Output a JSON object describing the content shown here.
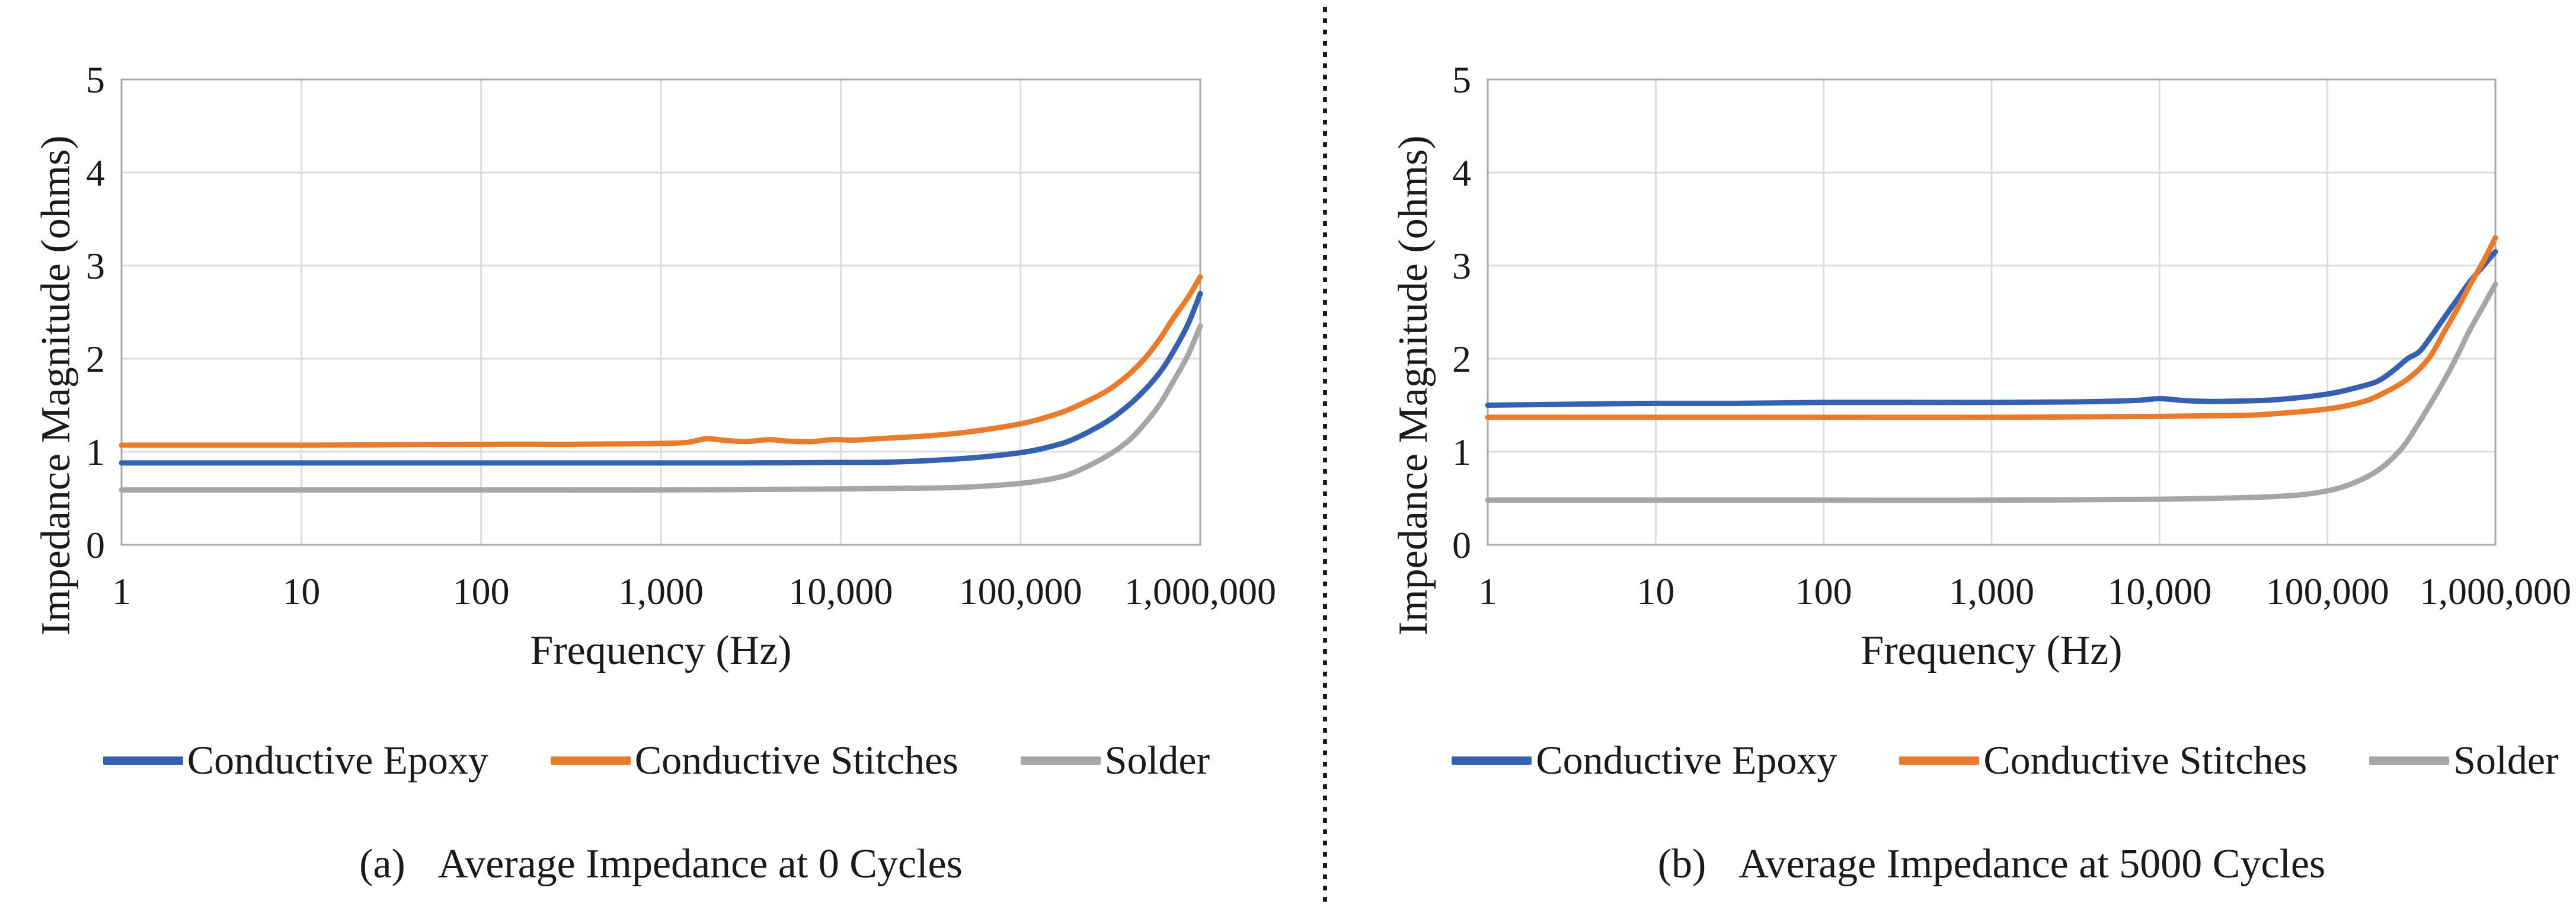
{
  "style_colors": {
    "grid": "#DCDCDC",
    "axis": "#A9A9A9",
    "text": "#1A1A1A",
    "divider": "#1A1A1A"
  },
  "panels": [
    {
      "caption_label": "(a)",
      "caption_text": "Average Impedance at 0 Cycles"
    },
    {
      "caption_label": "(b)",
      "caption_text": "Average Impedance at 5000 Cycles"
    }
  ],
  "chart_data": [
    {
      "type": "line",
      "title": "(a) Average Impedance at 0 Cycles",
      "xlabel": "Frequency (Hz)",
      "ylabel": "Impedance Magnitude (ohms)",
      "x_scale": "log",
      "xlim": [
        1,
        1000000
      ],
      "ylim": [
        0,
        5
      ],
      "grid": true,
      "legend_position": "below",
      "x_ticks": {
        "values": [
          1,
          10,
          100,
          1000,
          10000,
          100000,
          1000000
        ],
        "labels": [
          "1",
          "10",
          "100",
          "1,000",
          "10,000",
          "100,000",
          "1,000,000"
        ]
      },
      "y_ticks": [
        0,
        1,
        2,
        3,
        4,
        5
      ],
      "series": [
        {
          "name": "Conductive Epoxy",
          "color": "#3660B0",
          "points": [
            [
              1,
              0.88
            ],
            [
              3,
              0.88
            ],
            [
              10,
              0.88
            ],
            [
              30,
              0.88
            ],
            [
              100,
              0.88
            ],
            [
              300,
              0.88
            ],
            [
              1000,
              0.88
            ],
            [
              3000,
              0.88
            ],
            [
              10000,
              0.885
            ],
            [
              20000,
              0.89
            ],
            [
              50000,
              0.93
            ],
            [
              100000,
              0.99
            ],
            [
              150000,
              1.06
            ],
            [
              200000,
              1.14
            ],
            [
              300000,
              1.32
            ],
            [
              400000,
              1.5
            ],
            [
              500000,
              1.68
            ],
            [
              600000,
              1.86
            ],
            [
              700000,
              2.06
            ],
            [
              850000,
              2.36
            ],
            [
              1000000,
              2.7
            ]
          ]
        },
        {
          "name": "Conductive Stitches",
          "color": "#EA7B2C",
          "points": [
            [
              1,
              1.07
            ],
            [
              3,
              1.07
            ],
            [
              10,
              1.07
            ],
            [
              30,
              1.075
            ],
            [
              100,
              1.08
            ],
            [
              300,
              1.08
            ],
            [
              700,
              1.085
            ],
            [
              1000,
              1.09
            ],
            [
              1400,
              1.1
            ],
            [
              1800,
              1.14
            ],
            [
              2300,
              1.12
            ],
            [
              3000,
              1.11
            ],
            [
              4000,
              1.13
            ],
            [
              5000,
              1.115
            ],
            [
              7000,
              1.11
            ],
            [
              9000,
              1.13
            ],
            [
              12000,
              1.125
            ],
            [
              16000,
              1.14
            ],
            [
              20000,
              1.15
            ],
            [
              30000,
              1.17
            ],
            [
              50000,
              1.21
            ],
            [
              100000,
              1.3
            ],
            [
              150000,
              1.39
            ],
            [
              200000,
              1.48
            ],
            [
              300000,
              1.65
            ],
            [
              400000,
              1.83
            ],
            [
              500000,
              2.02
            ],
            [
              600000,
              2.22
            ],
            [
              700000,
              2.42
            ],
            [
              850000,
              2.65
            ],
            [
              1000000,
              2.88
            ]
          ]
        },
        {
          "name": "Solder",
          "color": "#A6A6A6",
          "points": [
            [
              1,
              0.59
            ],
            [
              10,
              0.59
            ],
            [
              100,
              0.59
            ],
            [
              1000,
              0.59
            ],
            [
              10000,
              0.6
            ],
            [
              30000,
              0.61
            ],
            [
              50000,
              0.62
            ],
            [
              100000,
              0.66
            ],
            [
              150000,
              0.71
            ],
            [
              200000,
              0.78
            ],
            [
              300000,
              0.95
            ],
            [
              400000,
              1.12
            ],
            [
              500000,
              1.32
            ],
            [
              600000,
              1.52
            ],
            [
              700000,
              1.74
            ],
            [
              850000,
              2.03
            ],
            [
              1000000,
              2.35
            ]
          ]
        }
      ]
    },
    {
      "type": "line",
      "title": "(b) Average Impedance at 5000 Cycles",
      "xlabel": "Frequency (Hz)",
      "ylabel": "Impedance Magnitude (ohms)",
      "x_scale": "log",
      "xlim": [
        1,
        1000000
      ],
      "ylim": [
        0,
        5
      ],
      "grid": true,
      "legend_position": "below",
      "x_ticks": {
        "values": [
          1,
          10,
          100,
          1000,
          10000,
          100000,
          1000000
        ],
        "labels": [
          "1",
          "10",
          "100",
          "1,000",
          "10,000",
          "100,000",
          "1,000,000"
        ]
      },
      "y_ticks": [
        0,
        1,
        2,
        3,
        4,
        5
      ],
      "series": [
        {
          "name": "Conductive Epoxy",
          "color": "#3660B0",
          "points": [
            [
              1,
              1.5
            ],
            [
              3,
              1.51
            ],
            [
              10,
              1.52
            ],
            [
              30,
              1.52
            ],
            [
              100,
              1.53
            ],
            [
              300,
              1.53
            ],
            [
              1000,
              1.53
            ],
            [
              3000,
              1.535
            ],
            [
              7000,
              1.55
            ],
            [
              10000,
              1.57
            ],
            [
              14000,
              1.55
            ],
            [
              20000,
              1.54
            ],
            [
              30000,
              1.545
            ],
            [
              50000,
              1.56
            ],
            [
              100000,
              1.62
            ],
            [
              150000,
              1.69
            ],
            [
              200000,
              1.76
            ],
            [
              250000,
              1.88
            ],
            [
              300000,
              2.0
            ],
            [
              350000,
              2.07
            ],
            [
              400000,
              2.2
            ],
            [
              500000,
              2.45
            ],
            [
              600000,
              2.65
            ],
            [
              700000,
              2.82
            ],
            [
              850000,
              3.0
            ],
            [
              1000000,
              3.15
            ]
          ]
        },
        {
          "name": "Conductive Stitches",
          "color": "#EA7B2C",
          "points": [
            [
              1,
              1.37
            ],
            [
              10,
              1.37
            ],
            [
              100,
              1.37
            ],
            [
              1000,
              1.37
            ],
            [
              10000,
              1.38
            ],
            [
              30000,
              1.39
            ],
            [
              50000,
              1.41
            ],
            [
              100000,
              1.46
            ],
            [
              150000,
              1.52
            ],
            [
              200000,
              1.6
            ],
            [
              300000,
              1.78
            ],
            [
              400000,
              2.0
            ],
            [
              500000,
              2.3
            ],
            [
              600000,
              2.55
            ],
            [
              700000,
              2.78
            ],
            [
              850000,
              3.05
            ],
            [
              1000000,
              3.3
            ]
          ]
        },
        {
          "name": "Solder",
          "color": "#A6A6A6",
          "points": [
            [
              1,
              0.48
            ],
            [
              10,
              0.48
            ],
            [
              100,
              0.48
            ],
            [
              1000,
              0.48
            ],
            [
              10000,
              0.49
            ],
            [
              50000,
              0.52
            ],
            [
              100000,
              0.58
            ],
            [
              150000,
              0.68
            ],
            [
              200000,
              0.8
            ],
            [
              250000,
              0.95
            ],
            [
              300000,
              1.12
            ],
            [
              400000,
              1.48
            ],
            [
              500000,
              1.78
            ],
            [
              600000,
              2.05
            ],
            [
              700000,
              2.3
            ],
            [
              850000,
              2.57
            ],
            [
              1000000,
              2.8
            ]
          ]
        }
      ]
    }
  ]
}
